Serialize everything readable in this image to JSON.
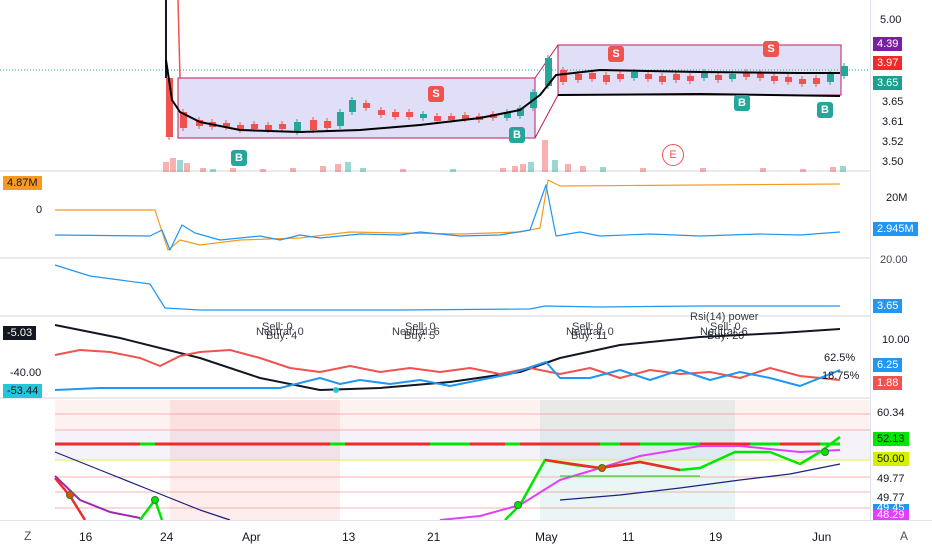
{
  "colors": {
    "up": "#26a69a",
    "down": "#ef5350",
    "ma_line": "#000000",
    "orange": "#f59b22",
    "blue": "#2196f3",
    "purple": "#9c27b0",
    "magenta": "#e040fb",
    "green": "#00e600",
    "red": "#ef2a2a",
    "navy": "#1a237e"
  },
  "price_axis": {
    "ticks": [
      "5.00",
      "3.65",
      "3.61",
      "3.52",
      "3.50"
    ],
    "badges": [
      {
        "text": "4.39",
        "color": "#7b1fa2"
      },
      {
        "text": "3.97",
        "color": "#ef2a2a"
      },
      {
        "text": "3.65",
        "color": "#1e9e8c"
      }
    ]
  },
  "pane2": {
    "left_badge": "4.87M",
    "left_zero": "0",
    "tick": "20M",
    "badge": "2.945M"
  },
  "pane3": {
    "tick": "20.00",
    "badge": "3.65"
  },
  "pane4": {
    "left_badges": [
      "-5.03",
      "-40.00",
      "-53.44"
    ],
    "ticks": [
      "10.00"
    ],
    "badges": [
      "6.25",
      "1.88"
    ],
    "pct_labels": [
      "62.5%",
      "18.75%"
    ],
    "overlay_texts": [
      "Sell: 0",
      "Buy: 4",
      "Neutral: 0",
      "Sell: 0",
      "Buy: 5",
      "Neutral: 6",
      "Sell: 0",
      "Buy: 11",
      "Neutral: 0",
      "Sell: 0",
      "Buy: 20",
      "Neutral: 6",
      "Rsi(14) power"
    ]
  },
  "pane5": {
    "axis": [
      {
        "text": "60.34",
        "bg": "#ffffff",
        "fg": "#131722"
      },
      {
        "text": "52.13",
        "bg": "#00e600",
        "fg": "#131722"
      },
      {
        "text": "50.00",
        "bg": "#d4f000",
        "fg": "#131722"
      },
      {
        "text": "49.77",
        "bg": "#ffffff",
        "fg": "#131722"
      },
      {
        "text": "49.77",
        "bg": "#ffffff",
        "fg": "#131722"
      },
      {
        "text": "49.45",
        "bg": "#2196f3",
        "fg": "#ffffff"
      },
      {
        "text": "48.29",
        "bg": "#e040fb",
        "fg": "#ffffff"
      }
    ]
  },
  "markers": {
    "buy": "B",
    "sell": "S",
    "earnings": "E"
  },
  "x_axis": {
    "labels": [
      "16",
      "24",
      "Apr",
      "13",
      "21",
      "May",
      "11",
      "19",
      "Jun"
    ],
    "corner_left": "Z",
    "corner_right": "A"
  }
}
